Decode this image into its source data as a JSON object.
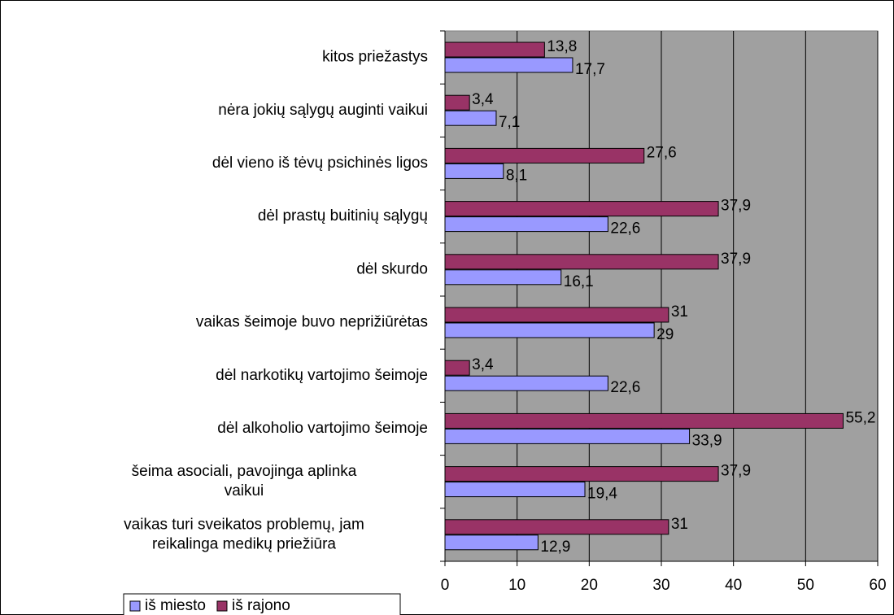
{
  "chart_data": {
    "type": "hbar",
    "categories": [
      "kitos priežastys",
      "nėra jokių sąlygų auginti vaikui",
      "dėl vieno iš tėvų psichinės ligos",
      "dėl prastų buitinių sąlygų",
      "dėl skurdo",
      "vaikas šeimoje buvo neprižiūrėtas",
      "dėl narkotikų vartojimo šeimoje",
      "dėl alkoholio vartojimo šeimoje",
      "šeima asociali, pavojinga aplinka\nvaikui",
      "vaikas turi sveikatos problemų, jam\nreikalinga medikų priežiūra"
    ],
    "series": [
      {
        "name": "iš miesto",
        "color": "#9999ff",
        "values": [
          17.7,
          7.1,
          8.1,
          22.6,
          16.1,
          29,
          22.6,
          33.9,
          19.4,
          12.9
        ],
        "value_labels": [
          "17,7",
          "7,1",
          "8,1",
          "22,6",
          "16,1",
          "29",
          "22,6",
          "33,9",
          "19,4",
          "12,9"
        ]
      },
      {
        "name": "iš rajono",
        "color": "#993366",
        "values": [
          13.8,
          3.4,
          27.6,
          37.9,
          37.9,
          31,
          3.4,
          55.2,
          37.9,
          31
        ],
        "value_labels": [
          "13,8",
          "3,4",
          "27,6",
          "37,9",
          "37,9",
          "31",
          "3,4",
          "55,2",
          "37,9",
          "31"
        ]
      }
    ],
    "xlim": [
      0,
      60
    ],
    "xticks": [
      0,
      10,
      20,
      30,
      40,
      50,
      60
    ],
    "grid": true,
    "legend": "bottom-left"
  }
}
